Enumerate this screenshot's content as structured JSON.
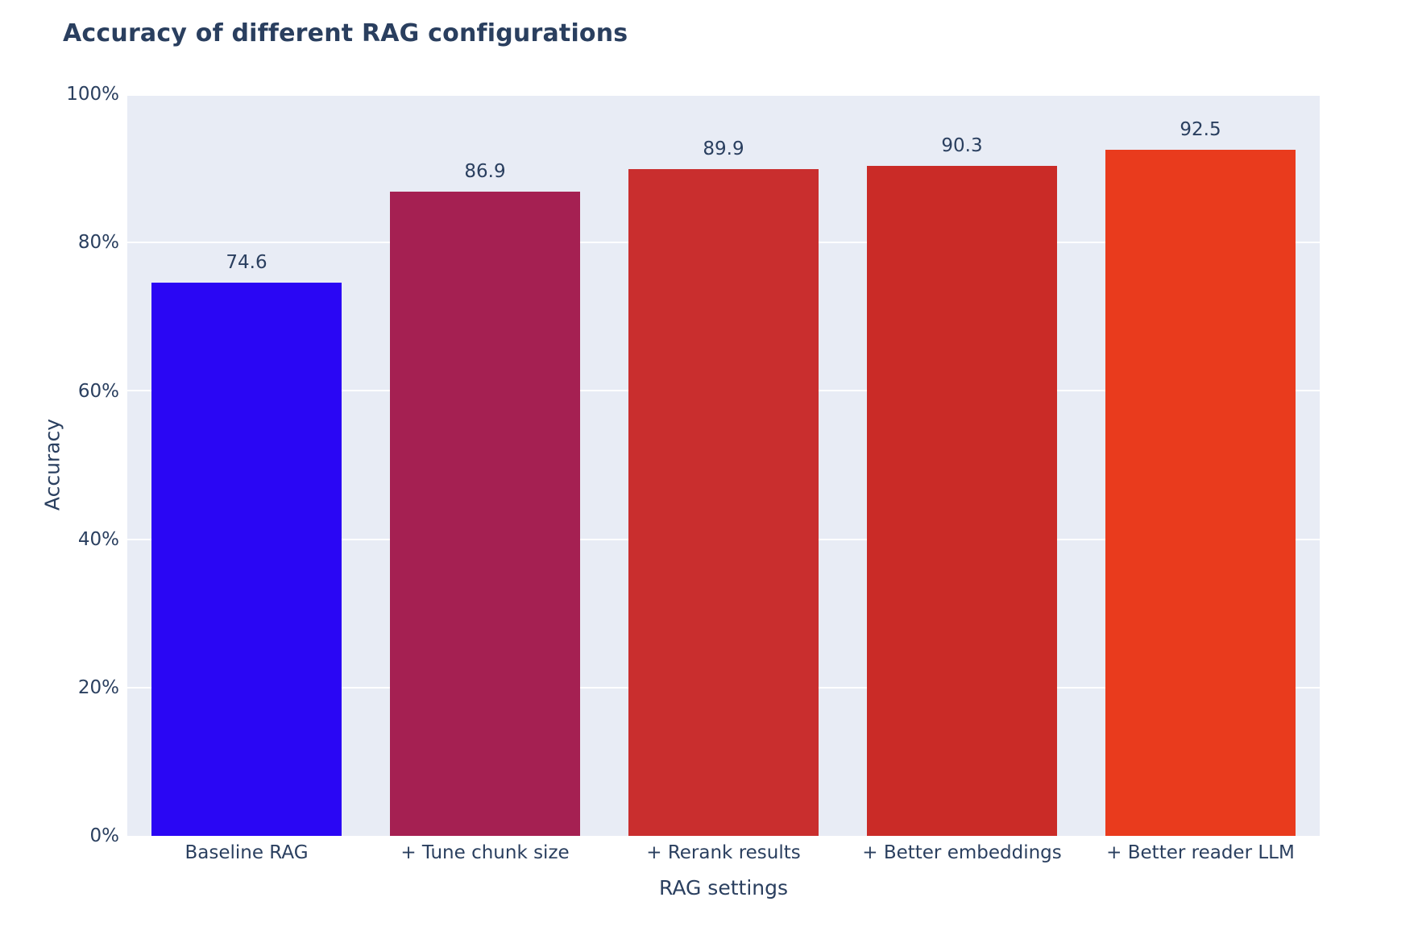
{
  "title": "Accuracy of different RAG configurations",
  "axes": {
    "x_title": "RAG settings",
    "y_title": "Accuracy"
  },
  "colors": {
    "page_background": "#ffffff",
    "plot_background": "#e8ecf5",
    "gridline": "#ffffff",
    "text": "#2a3f5f",
    "bar_colors": [
      "#2a06f4",
      "#a52052",
      "#c92e2e",
      "#ca2b27",
      "#e93b1d"
    ]
  },
  "chart_data": {
    "type": "bar",
    "title": "Accuracy of different RAG configurations",
    "xlabel": "RAG settings",
    "ylabel": "Accuracy",
    "categories": [
      "Baseline RAG",
      "+ Tune chunk size",
      "+ Rerank results",
      "+ Better embeddings",
      "+ Better reader LLM"
    ],
    "values": [
      74.6,
      86.9,
      89.9,
      90.3,
      92.5
    ],
    "value_labels": [
      "74.6",
      "86.9",
      "89.9",
      "90.3",
      "92.5"
    ],
    "bar_colors": [
      "#2a06f4",
      "#a52052",
      "#c92e2e",
      "#ca2b27",
      "#e93b1d"
    ],
    "ylim": [
      0,
      100
    ],
    "y_ticks": [
      "0%",
      "20%",
      "40%",
      "60%",
      "80%",
      "100%"
    ],
    "grid": true,
    "legend_position": "none"
  }
}
